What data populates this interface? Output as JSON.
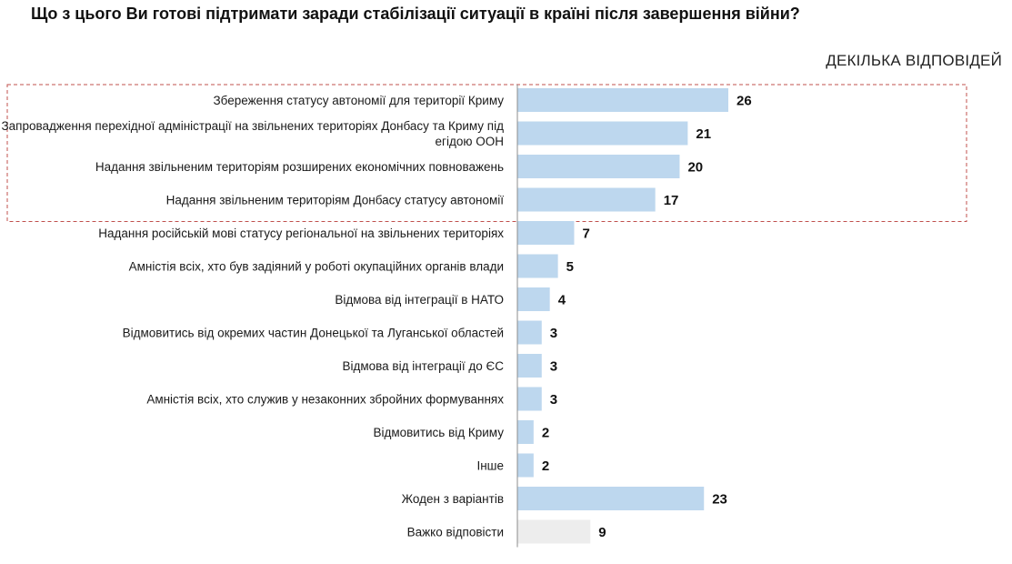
{
  "header": {
    "title": "Що з цього Ви готові підтримати заради стабілізації ситуації в країні після завершення війни?",
    "subtitle": "ДЕКІЛЬКА ВІДПОВІДЕЙ"
  },
  "colors": {
    "bar": "#bdd7ee",
    "bar_muted": "#ededed",
    "highlight_border": "#c0504d",
    "axis": "#8c8c8c"
  },
  "chart_data": {
    "type": "bar",
    "orientation": "horizontal",
    "categories": [
      [
        "Збереження статусу автономії для території Криму"
      ],
      [
        "Запровадження перехідної адміністрації на звільнених територіях Донбасу та Криму під",
        "егідою ООН"
      ],
      [
        "Надання звільненим територіям розширених економічних повноважень"
      ],
      [
        "Надання звільненим територіям Донбасу статусу автономії"
      ],
      [
        "Надання російській мові статусу регіональної на звільнених територіях"
      ],
      [
        "Амністія всіх, хто був задіяний у роботі окупаційних органів влади"
      ],
      [
        "Відмова від інтеграції в НАТО"
      ],
      [
        "Відмовитись від окремих частин Донецької та Луганської областей"
      ],
      [
        "Відмова від інтеграції до ЄС"
      ],
      [
        "Амністія всіх, хто служив у незаконних збройних формуваннях"
      ],
      [
        "Відмовитись від Криму"
      ],
      [
        "Інше"
      ],
      [
        "Жоден з варіантів"
      ],
      [
        "Важко відповісти"
      ]
    ],
    "values": [
      26,
      21,
      20,
      17,
      7,
      5,
      4,
      3,
      3,
      3,
      2,
      2,
      23,
      9
    ],
    "muted_indices": [
      13
    ],
    "highlighted_range": [
      0,
      3
    ],
    "xlim": [
      0,
      30
    ],
    "grid": false,
    "legend": "none"
  }
}
